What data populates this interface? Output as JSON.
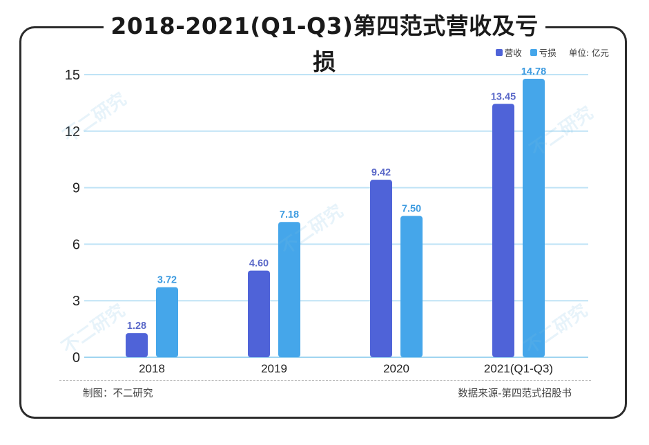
{
  "title": "2018-2021(Q1-Q3)第四范式营收及亏损",
  "legend": {
    "revenue_label": "营收",
    "loss_label": "亏损",
    "unit": "单位: 亿元"
  },
  "footer": {
    "left": "制图：不二研究",
    "right": "数据来源-第四范式招股书"
  },
  "watermark": "不二研究",
  "colors": {
    "revenue": "#4f63d8",
    "loss": "#45a6ea",
    "revenue_label": "#5a68c8",
    "loss_label": "#3d9be0",
    "grid": "#bfe3f6"
  },
  "chart_data": {
    "type": "bar",
    "categories": [
      "2018",
      "2019",
      "2020",
      "2021(Q1-Q3)"
    ],
    "series": [
      {
        "name": "营收",
        "values": [
          1.28,
          4.6,
          9.42,
          13.45
        ]
      },
      {
        "name": "亏损",
        "values": [
          3.72,
          7.18,
          7.5,
          14.78
        ]
      }
    ],
    "yticks": [
      0,
      3,
      6,
      9,
      12,
      15
    ],
    "ylim": [
      0,
      15
    ],
    "value_labels": [
      [
        "1.28",
        "4.60",
        "9.42",
        "13.45"
      ],
      [
        "3.72",
        "7.18",
        "7.50",
        "14.78"
      ]
    ],
    "grid": true,
    "legend_position": "top-right"
  }
}
